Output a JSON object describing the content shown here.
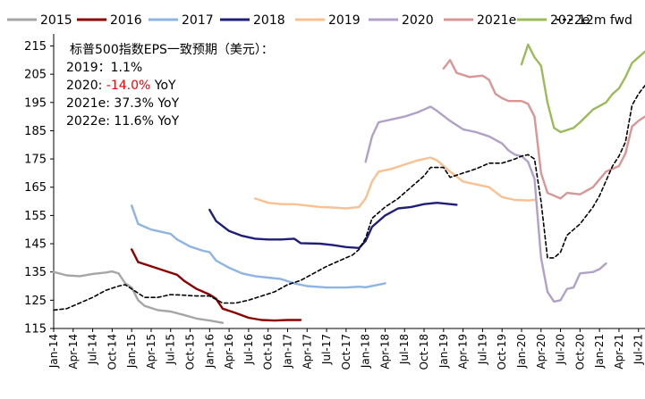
{
  "chart_data": {
    "type": "line",
    "ylim": [
      115,
      218
    ],
    "yticks": [
      115,
      125,
      135,
      145,
      155,
      165,
      175,
      185,
      195,
      205,
      215
    ],
    "x_tick_labels": [
      "Jan-14",
      "Apr-14",
      "Jul-14",
      "Oct-14",
      "Jan-15",
      "Apr-15",
      "Jul-15",
      "Oct-15",
      "Jan-16",
      "Apr-16",
      "Jul-16",
      "Oct-16",
      "Jan-17",
      "Apr-17",
      "Jul-17",
      "Oct-17",
      "Jan-18",
      "Apr-18",
      "Jul-18",
      "Oct-18",
      "Jan-19",
      "Apr-19",
      "Jul-19",
      "Oct-19",
      "Jan-20",
      "Apr-20",
      "Jul-20",
      "Oct-20",
      "Jan-21",
      "Apr-21",
      "Jul-21"
    ],
    "grid": false,
    "legend_position": "top",
    "annotation": {
      "title": "标普500指数EPS一致预期（美元）：",
      "lines": [
        {
          "label": "2019：",
          "value": "1.1%",
          "suffix": ""
        },
        {
          "label": "2020: ",
          "value": "-14.0%",
          "suffix": " YoY"
        },
        {
          "label": "2021e: ",
          "value": "37.3%",
          "suffix": " YoY"
        },
        {
          "label": "2022e: ",
          "value": "11.6%",
          "suffix": " YoY"
        }
      ]
    },
    "series": [
      {
        "name": "2015",
        "color": "#a6a6a6",
        "dash": false,
        "points": [
          [
            "Jan-14",
            135
          ],
          [
            "Mar-14",
            133.8
          ],
          [
            "May-14",
            133.5
          ],
          [
            "Jul-14",
            134.3
          ],
          [
            "Sep-14",
            134.8
          ],
          [
            "Oct-14",
            135.2
          ],
          [
            "Nov-14",
            134.5
          ],
          [
            "Dec-14",
            131
          ],
          [
            "Jan-15",
            129.5
          ],
          [
            "Feb-15",
            125
          ],
          [
            "Mar-15",
            123
          ],
          [
            "May-15",
            121.5
          ],
          [
            "Jul-15",
            121
          ],
          [
            "Sep-15",
            119.8
          ],
          [
            "Nov-15",
            118.5
          ],
          [
            "Jan-16",
            117.8
          ],
          [
            "Mar-16",
            117
          ]
        ]
      },
      {
        "name": "2016",
        "color": "#8b0000",
        "dash": false,
        "points": [
          [
            "Jan-15",
            143
          ],
          [
            "Feb-15",
            138.5
          ],
          [
            "Apr-15",
            137
          ],
          [
            "Jun-15",
            135.5
          ],
          [
            "Aug-15",
            134
          ],
          [
            "Sep-15",
            132
          ],
          [
            "Nov-15",
            129
          ],
          [
            "Jan-16",
            127
          ],
          [
            "Feb-16",
            125.5
          ],
          [
            "Mar-16",
            122
          ],
          [
            "May-16",
            120.5
          ],
          [
            "Jul-16",
            118.8
          ],
          [
            "Sep-16",
            118
          ],
          [
            "Nov-16",
            117.8
          ],
          [
            "Jan-17",
            118
          ],
          [
            "Mar-17",
            118
          ]
        ]
      },
      {
        "name": "2017",
        "color": "#8db4e2",
        "dash": false,
        "points": [
          [
            "Jan-15",
            158.5
          ],
          [
            "Feb-15",
            152
          ],
          [
            "Apr-15",
            150
          ],
          [
            "Jun-15",
            149
          ],
          [
            "Jul-15",
            148.5
          ],
          [
            "Aug-15",
            146.5
          ],
          [
            "Oct-15",
            144
          ],
          [
            "Dec-15",
            142.5
          ],
          [
            "Jan-16",
            142
          ],
          [
            "Feb-16",
            139
          ],
          [
            "Apr-16",
            136.5
          ],
          [
            "Jun-16",
            134.5
          ],
          [
            "Aug-16",
            133.5
          ],
          [
            "Oct-16",
            133
          ],
          [
            "Dec-16",
            132.5
          ],
          [
            "Feb-17",
            131
          ],
          [
            "Apr-17",
            130
          ],
          [
            "Jul-17",
            129.5
          ],
          [
            "Oct-17",
            129.5
          ],
          [
            "Dec-17",
            129.8
          ],
          [
            "Jan-18",
            129.6
          ],
          [
            "Mar-18",
            130.5
          ],
          [
            "Apr-18",
            131
          ]
        ]
      },
      {
        "name": "2018",
        "color": "#1f1f7a",
        "dash": false,
        "points": [
          [
            "Jan-16",
            157
          ],
          [
            "Feb-16",
            153
          ],
          [
            "Apr-16",
            149.5
          ],
          [
            "Jun-16",
            147.8
          ],
          [
            "Aug-16",
            146.8
          ],
          [
            "Oct-16",
            146.5
          ],
          [
            "Dec-16",
            146.5
          ],
          [
            "Feb-17",
            146.8
          ],
          [
            "Mar-17",
            145.2
          ],
          [
            "Jun-17",
            145
          ],
          [
            "Aug-17",
            144.5
          ],
          [
            "Oct-17",
            143.8
          ],
          [
            "Dec-17",
            143.5
          ],
          [
            "Jan-18",
            146
          ],
          [
            "Feb-18",
            151
          ],
          [
            "Apr-18",
            155
          ],
          [
            "Jun-18",
            157.5
          ],
          [
            "Aug-18",
            158
          ],
          [
            "Oct-18",
            159
          ],
          [
            "Dec-18",
            159.5
          ],
          [
            "Feb-19",
            159
          ],
          [
            "Mar-19",
            158.8
          ]
        ]
      },
      {
        "name": "2019",
        "color": "#fac090",
        "dash": false,
        "points": [
          [
            "Aug-16",
            161
          ],
          [
            "Oct-16",
            159.5
          ],
          [
            "Dec-16",
            159
          ],
          [
            "Feb-17",
            159
          ],
          [
            "Apr-17",
            158.5
          ],
          [
            "Jun-17",
            158
          ],
          [
            "Aug-17",
            157.8
          ],
          [
            "Oct-17",
            157.5
          ],
          [
            "Dec-17",
            158
          ],
          [
            "Jan-18",
            161
          ],
          [
            "Feb-18",
            167
          ],
          [
            "Mar-18",
            170.5
          ],
          [
            "May-18",
            171.5
          ],
          [
            "Jul-18",
            173
          ],
          [
            "Sep-18",
            174.5
          ],
          [
            "Nov-18",
            175.5
          ],
          [
            "Dec-18",
            174.5
          ],
          [
            "Feb-19",
            170.5
          ],
          [
            "Apr-19",
            167
          ],
          [
            "Jun-19",
            166
          ],
          [
            "Aug-19",
            165
          ],
          [
            "Oct-19",
            161.5
          ],
          [
            "Dec-19",
            160.5
          ],
          [
            "Feb-20",
            160.3
          ],
          [
            "Mar-20",
            160.5
          ]
        ]
      },
      {
        "name": "2020",
        "color": "#b1a0c7",
        "dash": false,
        "points": [
          [
            "Jan-18",
            174
          ],
          [
            "Feb-18",
            183
          ],
          [
            "Mar-18",
            188
          ],
          [
            "May-18",
            189
          ],
          [
            "Jul-18",
            190
          ],
          [
            "Sep-18",
            191.5
          ],
          [
            "Oct-18",
            192.5
          ],
          [
            "Nov-18",
            193.5
          ],
          [
            "Dec-18",
            192
          ],
          [
            "Feb-19",
            188.5
          ],
          [
            "Apr-19",
            185.5
          ],
          [
            "Jun-19",
            184.5
          ],
          [
            "Aug-19",
            183
          ],
          [
            "Oct-19",
            180.5
          ],
          [
            "Nov-19",
            178
          ],
          [
            "Dec-19",
            176.5
          ],
          [
            "Jan-20",
            176
          ],
          [
            "Feb-20",
            174
          ],
          [
            "Mar-20",
            168
          ],
          [
            "Apr-20",
            140
          ],
          [
            "May-20",
            128
          ],
          [
            "Jun-20",
            124.5
          ],
          [
            "Jul-20",
            125
          ],
          [
            "Aug-20",
            129
          ],
          [
            "Sep-20",
            129.5
          ],
          [
            "Oct-20",
            134.5
          ],
          [
            "Dec-20",
            135
          ],
          [
            "Jan-21",
            136
          ],
          [
            "Feb-21",
            138
          ]
        ]
      },
      {
        "name": "2021e",
        "color": "#d99694",
        "dash": false,
        "points": [
          [
            "Jan-19",
            207
          ],
          [
            "Feb-19",
            210
          ],
          [
            "Mar-19",
            205.5
          ],
          [
            "May-19",
            204
          ],
          [
            "Jul-19",
            204.5
          ],
          [
            "Aug-19",
            203
          ],
          [
            "Sep-19",
            198
          ],
          [
            "Oct-19",
            196.5
          ],
          [
            "Nov-19",
            195.5
          ],
          [
            "Jan-20",
            195.5
          ],
          [
            "Feb-20",
            194.5
          ],
          [
            "Mar-20",
            190
          ],
          [
            "Apr-20",
            170
          ],
          [
            "May-20",
            163
          ],
          [
            "Jun-20",
            162
          ],
          [
            "Jul-20",
            161
          ],
          [
            "Aug-20",
            163
          ],
          [
            "Oct-20",
            162.5
          ],
          [
            "Dec-20",
            165
          ],
          [
            "Feb-21",
            170.5
          ],
          [
            "Apr-21",
            172.5
          ],
          [
            "May-21",
            177
          ],
          [
            "Jun-21",
            186.5
          ],
          [
            "Jul-21",
            188.5
          ],
          [
            "Aug-21",
            190
          ]
        ]
      },
      {
        "name": "2022e",
        "color": "#9bbb59",
        "dash": false,
        "points": [
          [
            "Jan-20",
            208.5
          ],
          [
            "Feb-20",
            215.5
          ],
          [
            "Mar-20",
            211
          ],
          [
            "Apr-20",
            208
          ],
          [
            "May-20",
            195
          ],
          [
            "Jun-20",
            186
          ],
          [
            "Jul-20",
            184.5
          ],
          [
            "Sep-20",
            186
          ],
          [
            "Oct-20",
            188
          ],
          [
            "Dec-20",
            192.5
          ],
          [
            "Feb-21",
            195
          ],
          [
            "Mar-21",
            198
          ],
          [
            "Apr-21",
            200
          ],
          [
            "May-21",
            204
          ],
          [
            "Jun-21",
            209
          ],
          [
            "Jul-21",
            211
          ],
          [
            "Aug-21",
            213
          ]
        ]
      },
      {
        "name": "12m fwd",
        "color": "#000000",
        "dash": true,
        "points": [
          [
            "Jan-14",
            121.5
          ],
          [
            "Mar-14",
            122
          ],
          [
            "May-14",
            124
          ],
          [
            "Jul-14",
            126
          ],
          [
            "Sep-14",
            128.5
          ],
          [
            "Nov-14",
            130
          ],
          [
            "Dec-14",
            130.5
          ],
          [
            "Jan-15",
            129
          ],
          [
            "Mar-15",
            126
          ],
          [
            "May-15",
            126
          ],
          [
            "Jul-15",
            127
          ],
          [
            "Sep-15",
            126.8
          ],
          [
            "Nov-15",
            126.5
          ],
          [
            "Jan-16",
            126.5
          ],
          [
            "Mar-16",
            124
          ],
          [
            "May-16",
            124
          ],
          [
            "Jul-16",
            125
          ],
          [
            "Sep-16",
            126.5
          ],
          [
            "Nov-16",
            128
          ],
          [
            "Jan-17",
            130.5
          ],
          [
            "Mar-17",
            132
          ],
          [
            "May-17",
            134.5
          ],
          [
            "Jul-17",
            137
          ],
          [
            "Sep-17",
            139
          ],
          [
            "Nov-17",
            141
          ],
          [
            "Dec-17",
            143
          ],
          [
            "Jan-18",
            147
          ],
          [
            "Feb-18",
            154
          ],
          [
            "Apr-18",
            158
          ],
          [
            "Jun-18",
            161
          ],
          [
            "Aug-18",
            165
          ],
          [
            "Oct-18",
            169
          ],
          [
            "Nov-18",
            172
          ],
          [
            "Jan-19",
            172
          ],
          [
            "Feb-19",
            168.5
          ],
          [
            "Apr-19",
            170
          ],
          [
            "Jun-19",
            171.5
          ],
          [
            "Aug-19",
            173.5
          ],
          [
            "Oct-19",
            173.5
          ],
          [
            "Dec-19",
            175
          ],
          [
            "Jan-20",
            176
          ],
          [
            "Feb-20",
            176.5
          ],
          [
            "Mar-20",
            175
          ],
          [
            "Apr-20",
            160
          ],
          [
            "May-20",
            140
          ],
          [
            "Jun-20",
            140
          ],
          [
            "Jul-20",
            142
          ],
          [
            "Aug-20",
            148
          ],
          [
            "Oct-20",
            152
          ],
          [
            "Dec-20",
            158
          ],
          [
            "Jan-21",
            162
          ],
          [
            "Mar-21",
            172.5
          ],
          [
            "Apr-21",
            176
          ],
          [
            "May-21",
            181
          ],
          [
            "Jun-21",
            194
          ],
          [
            "Jul-21",
            198
          ],
          [
            "Aug-21",
            201
          ]
        ]
      }
    ]
  }
}
